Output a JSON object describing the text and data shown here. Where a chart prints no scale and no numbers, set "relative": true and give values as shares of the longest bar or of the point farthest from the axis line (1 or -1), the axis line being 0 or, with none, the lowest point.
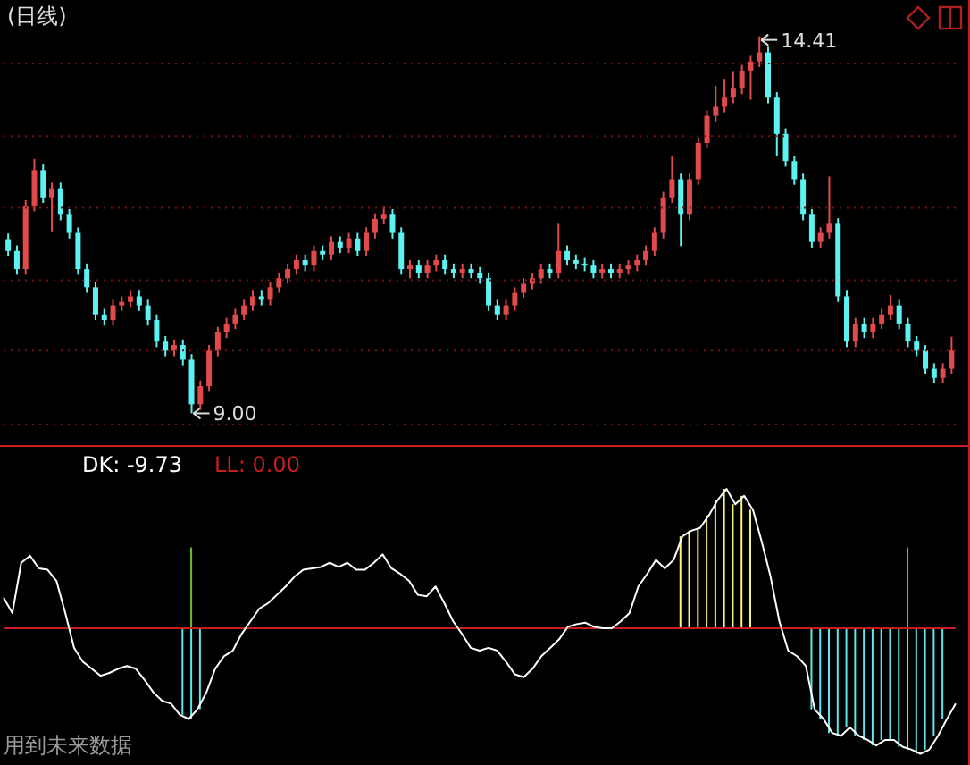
{
  "chart_data": [
    {
      "type": "candlestick",
      "title": "(日线)",
      "categories": [
        null,
        null,
        null,
        null,
        null,
        null,
        null,
        null,
        null,
        null,
        null,
        null,
        null,
        null,
        null,
        null,
        null,
        null,
        null,
        null,
        null,
        null,
        null,
        null,
        null,
        null,
        null,
        null,
        null,
        null,
        null,
        null,
        null,
        null,
        null,
        null,
        null,
        null,
        null,
        null,
        null,
        null,
        null,
        null,
        null,
        null,
        null,
        null,
        null,
        null,
        null,
        null,
        null,
        null,
        null,
        null,
        null,
        null,
        null,
        null,
        null,
        null,
        null,
        null,
        null,
        null,
        null,
        null,
        null,
        null,
        null,
        null,
        null,
        null,
        null,
        null,
        null,
        null,
        null,
        null,
        null,
        null,
        null,
        null,
        null,
        null,
        null,
        null,
        null,
        null,
        null,
        null,
        null,
        null,
        null,
        null,
        null,
        null,
        null,
        null,
        null,
        null,
        null,
        null,
        null,
        null,
        null,
        null,
        null
      ],
      "ohlc": [
        [
          11.5,
          11.58,
          11.25,
          11.33
        ],
        [
          11.33,
          11.41,
          10.99,
          11.07
        ],
        [
          11.07,
          12.06,
          10.99,
          11.98
        ],
        [
          11.98,
          12.65,
          11.9,
          12.49
        ],
        [
          12.49,
          12.57,
          12.02,
          12.1
        ],
        [
          12.1,
          12.31,
          11.6,
          12.23
        ],
        [
          12.23,
          12.31,
          11.77,
          11.85
        ],
        [
          11.85,
          11.93,
          11.51,
          11.59
        ],
        [
          11.59,
          11.67,
          10.99,
          11.07
        ],
        [
          11.07,
          11.15,
          10.73,
          10.81
        ],
        [
          10.81,
          10.89,
          10.34,
          10.42
        ],
        [
          10.42,
          10.5,
          10.26,
          10.34
        ],
        [
          10.34,
          10.63,
          10.26,
          10.55
        ],
        [
          10.55,
          10.68,
          10.47,
          10.6
        ],
        [
          10.6,
          10.76,
          10.52,
          10.68
        ],
        [
          10.68,
          10.76,
          10.47,
          10.55
        ],
        [
          10.55,
          10.63,
          10.26,
          10.34
        ],
        [
          10.34,
          10.42,
          9.95,
          10.03
        ],
        [
          10.03,
          10.11,
          9.82,
          9.9
        ],
        [
          9.9,
          10.06,
          9.82,
          9.98
        ],
        [
          9.98,
          10.06,
          9.69,
          9.77
        ],
        [
          9.77,
          9.85,
          9.0,
          9.13
        ],
        [
          9.13,
          9.47,
          9.05,
          9.39
        ],
        [
          9.39,
          9.98,
          9.31,
          9.9
        ],
        [
          9.9,
          10.24,
          9.82,
          10.16
        ],
        [
          10.16,
          10.37,
          10.08,
          10.29
        ],
        [
          10.29,
          10.5,
          10.21,
          10.42
        ],
        [
          10.42,
          10.63,
          10.34,
          10.55
        ],
        [
          10.55,
          10.76,
          10.47,
          10.68
        ],
        [
          10.68,
          10.76,
          10.55,
          10.63
        ],
        [
          10.63,
          10.89,
          10.55,
          10.81
        ],
        [
          10.81,
          11.02,
          10.73,
          10.94
        ],
        [
          10.94,
          11.15,
          10.86,
          11.07
        ],
        [
          11.07,
          11.28,
          10.99,
          11.2
        ],
        [
          11.2,
          11.28,
          11.04,
          11.12
        ],
        [
          11.12,
          11.41,
          11.04,
          11.33
        ],
        [
          11.33,
          11.41,
          11.2,
          11.28
        ],
        [
          11.28,
          11.54,
          11.2,
          11.46
        ],
        [
          11.46,
          11.54,
          11.3,
          11.38
        ],
        [
          11.38,
          11.59,
          11.3,
          11.51
        ],
        [
          11.51,
          11.59,
          11.25,
          11.33
        ],
        [
          11.33,
          11.67,
          11.25,
          11.59
        ],
        [
          11.59,
          11.87,
          11.51,
          11.79
        ],
        [
          11.79,
          11.98,
          11.71,
          11.85
        ],
        [
          11.85,
          11.93,
          11.51,
          11.59
        ],
        [
          11.59,
          11.67,
          10.99,
          11.07
        ],
        [
          11.07,
          11.2,
          10.94,
          11.12
        ],
        [
          11.12,
          11.2,
          10.94,
          11.02
        ],
        [
          11.02,
          11.2,
          10.94,
          11.12
        ],
        [
          11.12,
          11.28,
          11.04,
          11.2
        ],
        [
          11.2,
          11.28,
          10.99,
          11.07
        ],
        [
          11.07,
          11.15,
          10.94,
          11.02
        ],
        [
          11.02,
          11.15,
          10.94,
          11.07
        ],
        [
          11.07,
          11.15,
          10.94,
          11.02
        ],
        [
          11.02,
          11.1,
          10.86,
          10.94
        ],
        [
          10.94,
          11.02,
          10.47,
          10.55
        ],
        [
          10.55,
          10.63,
          10.34,
          10.42
        ],
        [
          10.42,
          10.63,
          10.34,
          10.55
        ],
        [
          10.55,
          10.81,
          10.47,
          10.73
        ],
        [
          10.73,
          10.94,
          10.65,
          10.86
        ],
        [
          10.86,
          11.02,
          10.78,
          10.94
        ],
        [
          10.94,
          11.15,
          10.86,
          11.07
        ],
        [
          11.07,
          11.15,
          10.94,
          11.02
        ],
        [
          11.02,
          11.72,
          10.94,
          11.33
        ],
        [
          11.33,
          11.41,
          11.12,
          11.2
        ],
        [
          11.2,
          11.28,
          11.07,
          11.15
        ],
        [
          11.15,
          11.23,
          11.04,
          11.12
        ],
        [
          11.12,
          11.2,
          10.94,
          11.02
        ],
        [
          11.02,
          11.15,
          10.94,
          11.07
        ],
        [
          11.07,
          11.15,
          10.94,
          11.02
        ],
        [
          11.02,
          11.15,
          10.94,
          11.07
        ],
        [
          11.07,
          11.2,
          10.99,
          11.12
        ],
        [
          11.12,
          11.28,
          11.04,
          11.2
        ],
        [
          11.2,
          11.41,
          11.12,
          11.33
        ],
        [
          11.33,
          11.67,
          11.25,
          11.59
        ],
        [
          11.59,
          12.18,
          11.51,
          12.1
        ],
        [
          12.1,
          12.7,
          12.02,
          12.36
        ],
        [
          12.36,
          12.44,
          11.4,
          11.85
        ],
        [
          11.85,
          12.44,
          11.77,
          12.36
        ],
        [
          12.36,
          12.96,
          12.28,
          12.88
        ],
        [
          12.88,
          13.35,
          12.8,
          13.27
        ],
        [
          13.27,
          13.7,
          13.19,
          13.4
        ],
        [
          13.4,
          13.8,
          13.32,
          13.53
        ],
        [
          13.53,
          13.9,
          13.45,
          13.66
        ],
        [
          13.66,
          14.0,
          13.58,
          13.92
        ],
        [
          13.92,
          14.13,
          13.5,
          14.05
        ],
        [
          14.05,
          14.41,
          13.97,
          14.18
        ],
        [
          14.18,
          14.26,
          13.45,
          13.53
        ],
        [
          13.53,
          13.61,
          12.7,
          13.01
        ],
        [
          13.01,
          13.09,
          12.54,
          12.62
        ],
        [
          12.62,
          12.7,
          12.28,
          12.36
        ],
        [
          12.36,
          12.44,
          11.77,
          11.85
        ],
        [
          11.85,
          11.93,
          11.38,
          11.46
        ],
        [
          11.46,
          11.67,
          11.38,
          11.59
        ],
        [
          11.59,
          12.4,
          11.51,
          11.72
        ],
        [
          11.72,
          11.8,
          10.6,
          10.68
        ],
        [
          10.68,
          10.76,
          9.95,
          10.03
        ],
        [
          10.03,
          10.37,
          9.95,
          10.29
        ],
        [
          10.29,
          10.37,
          10.08,
          10.16
        ],
        [
          10.16,
          10.37,
          10.08,
          10.29
        ],
        [
          10.29,
          10.5,
          10.21,
          10.42
        ],
        [
          10.42,
          10.7,
          10.34,
          10.55
        ],
        [
          10.55,
          10.63,
          10.21,
          10.29
        ],
        [
          10.29,
          10.37,
          9.95,
          10.03
        ],
        [
          10.03,
          10.11,
          9.82,
          9.9
        ],
        [
          9.9,
          9.98,
          9.56,
          9.64
        ],
        [
          9.64,
          9.72,
          9.43,
          9.51
        ],
        [
          9.51,
          9.72,
          9.43,
          9.64
        ],
        [
          9.64,
          10.1,
          9.56,
          9.9
        ]
      ],
      "colors": [
        "#5cf2f2",
        "#5cf2f2",
        "#e04a4a",
        "#e04a4a",
        "#5cf2f2",
        "#e04a4a",
        "#5cf2f2",
        "#5cf2f2",
        "#5cf2f2",
        "#5cf2f2",
        "#5cf2f2",
        "#5cf2f2",
        "#e04a4a",
        "#e04a4a",
        "#e04a4a",
        "#5cf2f2",
        "#5cf2f2",
        "#5cf2f2",
        "#5cf2f2",
        "#e04a4a",
        "#5cf2f2",
        "#5cf2f2",
        "#e04a4a",
        "#e04a4a",
        "#e04a4a",
        "#e04a4a",
        "#e04a4a",
        "#e04a4a",
        "#e04a4a",
        "#5cf2f2",
        "#e04a4a",
        "#e04a4a",
        "#e04a4a",
        "#e04a4a",
        "#5cf2f2",
        "#e04a4a",
        "#5cf2f2",
        "#e04a4a",
        "#5cf2f2",
        "#e04a4a",
        "#5cf2f2",
        "#e04a4a",
        "#e04a4a",
        "#e04a4a",
        "#5cf2f2",
        "#5cf2f2",
        "#e04a4a",
        "#5cf2f2",
        "#e04a4a",
        "#e04a4a",
        "#5cf2f2",
        "#5cf2f2",
        "#e04a4a",
        "#5cf2f2",
        "#5cf2f2",
        "#5cf2f2",
        "#5cf2f2",
        "#e04a4a",
        "#e04a4a",
        "#e04a4a",
        "#e04a4a",
        "#e04a4a",
        "#5cf2f2",
        "#e04a4a",
        "#5cf2f2",
        "#5cf2f2",
        "#5cf2f2",
        "#5cf2f2",
        "#e04a4a",
        "#5cf2f2",
        "#e04a4a",
        "#e04a4a",
        "#e04a4a",
        "#e04a4a",
        "#e04a4a",
        "#e04a4a",
        "#e04a4a",
        "#5cf2f2",
        "#e04a4a",
        "#e04a4a",
        "#e04a4a",
        "#e04a4a",
        "#e04a4a",
        "#e04a4a",
        "#e04a4a",
        "#e04a4a",
        "#e04a4a",
        "#5cf2f2",
        "#5cf2f2",
        "#5cf2f2",
        "#5cf2f2",
        "#5cf2f2",
        "#5cf2f2",
        "#e04a4a",
        "#e04a4a",
        "#5cf2f2",
        "#5cf2f2",
        "#e04a4a",
        "#5cf2f2",
        "#e04a4a",
        "#e04a4a",
        "#e04a4a",
        "#5cf2f2",
        "#5cf2f2",
        "#5cf2f2",
        "#5cf2f2",
        "#5cf2f2",
        "#e04a4a",
        "#e04a4a"
      ],
      "yticks": [
        {
          "value": 14.02,
          "label": null
        },
        {
          "value": 12.98,
          "label": null
        },
        {
          "value": 11.95,
          "label": null
        },
        {
          "value": 10.91,
          "label": null
        },
        {
          "value": 9.9,
          "label": null
        },
        {
          "value": 8.84,
          "label": null
        }
      ],
      "grid": "y",
      "annotations": [
        "14.41",
        "9.00"
      ]
    },
    {
      "type": "line",
      "relative": true,
      "categories": [
        null,
        null,
        null,
        null,
        null,
        null,
        null,
        null,
        null,
        null,
        null,
        null,
        null,
        null,
        null,
        null,
        null,
        null,
        null,
        null,
        null,
        null,
        null,
        null,
        null,
        null,
        null,
        null,
        null,
        null,
        null,
        null,
        null,
        null,
        null,
        null,
        null,
        null,
        null,
        null,
        null,
        null,
        null,
        null,
        null,
        null,
        null,
        null,
        null,
        null,
        null,
        null,
        null,
        null,
        null,
        null,
        null,
        null,
        null,
        null,
        null,
        null,
        null,
        null,
        null,
        null,
        null,
        null,
        null,
        null,
        null,
        null,
        null,
        null,
        null,
        null,
        null,
        null,
        null,
        null,
        null,
        null,
        null,
        null,
        null,
        null,
        null,
        null,
        null,
        null,
        null,
        null,
        null,
        null,
        null,
        null,
        null,
        null,
        null,
        null,
        null,
        null,
        null,
        null,
        null,
        null,
        null,
        null,
        null
      ],
      "series": [
        {
          "name": "DK: -9.73",
          "color": "#ffffff",
          "values": [
            0.22,
            0.11,
            0.47,
            0.52,
            0.43,
            0.42,
            0.34,
            0.11,
            -0.14,
            -0.24,
            -0.29,
            -0.34,
            -0.32,
            -0.29,
            -0.27,
            -0.29,
            -0.37,
            -0.46,
            -0.52,
            -0.54,
            -0.62,
            -0.65,
            -0.58,
            -0.46,
            -0.29,
            -0.2,
            -0.16,
            -0.04,
            0.05,
            0.14,
            0.18,
            0.24,
            0.3,
            0.37,
            0.42,
            0.43,
            0.44,
            0.47,
            0.44,
            0.47,
            0.42,
            0.42,
            0.47,
            0.53,
            0.43,
            0.39,
            0.34,
            0.24,
            0.23,
            0.3,
            0.18,
            0.05,
            -0.04,
            -0.14,
            -0.16,
            -0.14,
            -0.16,
            -0.24,
            -0.33,
            -0.35,
            -0.29,
            -0.2,
            -0.14,
            -0.08,
            0.01,
            0.03,
            0.04,
            0.01,
            0.0,
            0.0,
            0.05,
            0.11,
            0.3,
            0.39,
            0.49,
            0.43,
            0.49,
            0.66,
            0.7,
            0.72,
            0.81,
            0.92,
            1.0,
            0.89,
            0.95,
            0.85,
            0.62,
            0.37,
            0.05,
            -0.16,
            -0.2,
            -0.27,
            -0.58,
            -0.65,
            -0.75,
            -0.77,
            -0.71,
            -0.77,
            -0.8,
            -0.84,
            -0.8,
            -0.8,
            -0.85,
            -0.87,
            -0.9,
            -0.87,
            -0.77,
            -0.65,
            -0.54
          ]
        }
      ],
      "ref_lines": [
        {
          "axis": "y",
          "value": 0,
          "label": "LL: 0.00",
          "color": "#c81e1e"
        }
      ],
      "annotations": [
        "用到未来数据"
      ]
    },
    {
      "type": "bar",
      "relative": true,
      "stacked": true,
      "categories": [
        null,
        null,
        null,
        null,
        null,
        null,
        null,
        null,
        null,
        null,
        null,
        null,
        null,
        null,
        null,
        null,
        null,
        null,
        null,
        null,
        null,
        null,
        null,
        null,
        null,
        null,
        null,
        null,
        null,
        null,
        null,
        null,
        null,
        null,
        null,
        null,
        null,
        null,
        null,
        null,
        null,
        null,
        null,
        null,
        null,
        null,
        null,
        null,
        null,
        null,
        null,
        null,
        null,
        null,
        null,
        null,
        null,
        null,
        null,
        null,
        null,
        null,
        null,
        null,
        null,
        null,
        null,
        null,
        null,
        null,
        null,
        null,
        null,
        null,
        null,
        null,
        null,
        null,
        null,
        null,
        null,
        null,
        null,
        null,
        null,
        null,
        null,
        null,
        null,
        null,
        null,
        null,
        null,
        null,
        null,
        null,
        null,
        null,
        null,
        null,
        null,
        null,
        null,
        null,
        null,
        null,
        null,
        null,
        null
      ],
      "series": [
        {
          "values": [
            null,
            null,
            null,
            null,
            null,
            null,
            null,
            null,
            null,
            null,
            null,
            null,
            null,
            null,
            null,
            null,
            null,
            null,
            null,
            null,
            -0.62,
            -0.65,
            -0.58,
            null,
            null,
            null,
            null,
            null,
            null,
            null,
            null,
            null,
            null,
            null,
            null,
            null,
            null,
            null,
            null,
            null,
            null,
            null,
            null,
            null,
            null,
            null,
            null,
            null,
            null,
            null,
            null,
            null,
            null,
            null,
            null,
            null,
            null,
            null,
            null,
            null,
            null,
            null,
            null,
            null,
            null,
            null,
            null,
            null,
            null,
            null,
            null,
            null,
            null,
            null,
            null,
            null,
            null,
            0.66,
            0.7,
            0.72,
            0.81,
            0.92,
            1.0,
            0.89,
            0.95,
            0.85,
            null,
            null,
            null,
            null,
            null,
            null,
            -0.58,
            -0.65,
            -0.75,
            -0.77,
            -0.71,
            -0.77,
            -0.8,
            -0.84,
            -0.8,
            -0.8,
            -0.85,
            -0.87,
            -0.9,
            -0.87,
            -0.77,
            -0.65,
            null
          ],
          "colors": [
            null,
            null,
            null,
            null,
            null,
            null,
            null,
            null,
            null,
            null,
            null,
            null,
            null,
            null,
            null,
            null,
            null,
            null,
            null,
            null,
            "#5ce8ec",
            "#5ce8ec",
            "#5ce8ec",
            null,
            null,
            null,
            null,
            null,
            null,
            null,
            null,
            null,
            null,
            null,
            null,
            null,
            null,
            null,
            null,
            null,
            null,
            null,
            null,
            null,
            null,
            null,
            null,
            null,
            null,
            null,
            null,
            null,
            null,
            null,
            null,
            null,
            null,
            null,
            null,
            null,
            null,
            null,
            null,
            null,
            null,
            null,
            null,
            null,
            null,
            null,
            null,
            null,
            null,
            null,
            null,
            null,
            null,
            "#f6f27a",
            "#f6f27a",
            "#f6f27a",
            "#f6f27a",
            "#f6f27a",
            "#f6f27a",
            "#f6f27a",
            "#f6f27a",
            "#f6f27a",
            null,
            null,
            null,
            null,
            null,
            null,
            "#5ce8ec",
            "#5ce8ec",
            "#5ce8ec",
            "#5ce8ec",
            "#5ce8ec",
            "#5ce8ec",
            "#5ce8ec",
            "#5ce8ec",
            "#5ce8ec",
            "#5ce8ec",
            "#5ce8ec",
            "#5ce8ec",
            "#5ce8ec",
            "#5ce8ec",
            "#5ce8ec",
            "#5ce8ec",
            null
          ]
        },
        {
          "color": "#6cc21c",
          "values": [
            null,
            null,
            null,
            null,
            null,
            null,
            null,
            null,
            null,
            null,
            null,
            null,
            null,
            null,
            null,
            null,
            null,
            null,
            null,
            null,
            null,
            0.58,
            null,
            null,
            null,
            null,
            null,
            null,
            null,
            null,
            null,
            null,
            null,
            null,
            null,
            null,
            null,
            null,
            null,
            null,
            null,
            null,
            null,
            null,
            null,
            null,
            null,
            null,
            null,
            null,
            null,
            null,
            null,
            null,
            null,
            null,
            null,
            null,
            null,
            null,
            null,
            null,
            null,
            null,
            null,
            null,
            null,
            null,
            null,
            null,
            null,
            null,
            null,
            null,
            null,
            null,
            null,
            null,
            null,
            null,
            null,
            null,
            null,
            null,
            null,
            null,
            null,
            null,
            null,
            null,
            null,
            null,
            null,
            null,
            null,
            null,
            null,
            null,
            null,
            null,
            null,
            null,
            null,
            0.58,
            null,
            null,
            null,
            null,
            null
          ]
        }
      ]
    }
  ]
}
